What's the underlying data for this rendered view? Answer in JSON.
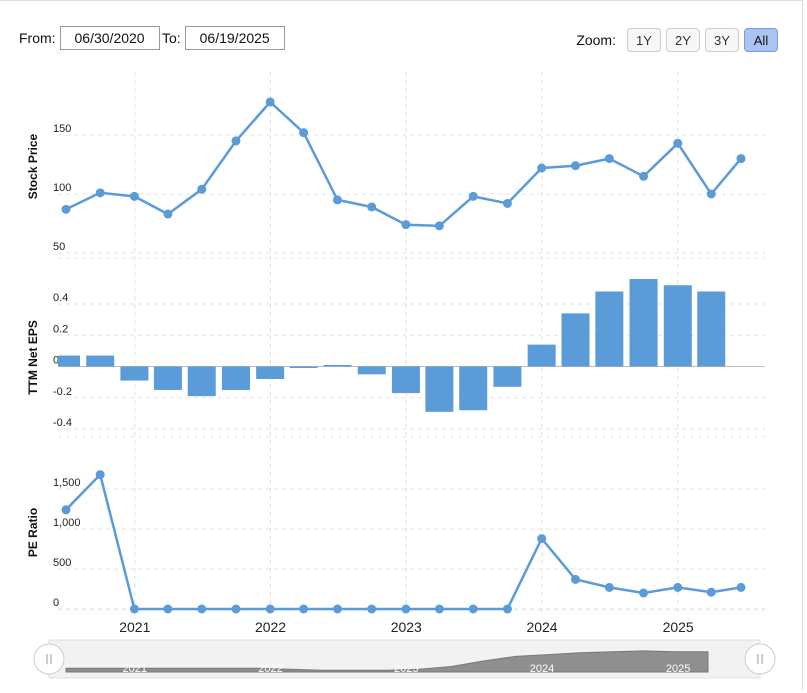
{
  "range": {
    "from_label": "From:",
    "from_value": "06/30/2020",
    "to_label": "To:",
    "to_value": "06/19/2025"
  },
  "zoom": {
    "label": "Zoom:",
    "buttons": [
      {
        "label": "1Y",
        "active": false
      },
      {
        "label": "2Y",
        "active": false
      },
      {
        "label": "3Y",
        "active": false
      },
      {
        "label": "All",
        "active": true
      }
    ]
  },
  "colors": {
    "series": "#5b9bd8",
    "active_zoom": "#a9c4f3",
    "navigator_fill": "#999999"
  },
  "chart_data": [
    {
      "type": "line",
      "ylabel": "Stock Price",
      "yticks": [
        50,
        100,
        150
      ],
      "ylim": [
        50,
        200
      ],
      "x": [
        "2020-06-30",
        "2020-09-30",
        "2020-12-31",
        "2021-03-31",
        "2021-06-30",
        "2021-09-30",
        "2021-12-31",
        "2022-03-31",
        "2022-06-30",
        "2022-09-30",
        "2022-12-31",
        "2023-03-31",
        "2023-06-30",
        "2023-09-30",
        "2023-12-31",
        "2024-03-31",
        "2024-06-30",
        "2024-09-30",
        "2024-12-31",
        "2025-03-31",
        "2025-06-19"
      ],
      "values": [
        87,
        101,
        98,
        83,
        104,
        145,
        178,
        152,
        95,
        89,
        74,
        73,
        98,
        92,
        122,
        124,
        130,
        115,
        143,
        100,
        130
      ]
    },
    {
      "type": "bar",
      "ylabel": "TTM Net EPS",
      "yticks": [
        -0.4,
        -0.2,
        0.0,
        0.2,
        0.4
      ],
      "ytick_labels": [
        "-0.4",
        "-0.2",
        "0.0",
        "0.2",
        "0.4"
      ],
      "ylim": [
        -0.45,
        0.5
      ],
      "x": [
        "2020-06-30",
        "2020-09-30",
        "2020-12-31",
        "2021-03-31",
        "2021-06-30",
        "2021-09-30",
        "2021-12-31",
        "2022-03-31",
        "2022-06-30",
        "2022-09-30",
        "2022-12-31",
        "2023-03-31",
        "2023-06-30",
        "2023-09-30",
        "2023-12-31",
        "2024-03-31",
        "2024-06-30",
        "2024-09-30",
        "2024-12-31",
        "2025-03-31"
      ],
      "values": [
        0.07,
        0.07,
        -0.09,
        -0.15,
        -0.19,
        -0.15,
        -0.08,
        0.0,
        0.01,
        -0.05,
        -0.17,
        -0.29,
        -0.28,
        -0.13,
        0.14,
        0.34,
        0.48,
        0.56,
        0.52,
        0.48
      ]
    },
    {
      "type": "line",
      "ylabel": "PE Ratio",
      "yticks": [
        0,
        500,
        1000,
        1500
      ],
      "ytick_labels": [
        "0",
        "500",
        "1,000",
        "1,500"
      ],
      "ylim": [
        0,
        1800
      ],
      "x": [
        "2020-06-30",
        "2020-09-30",
        "2020-12-31",
        "2021-03-31",
        "2021-06-30",
        "2021-09-30",
        "2021-12-31",
        "2022-03-31",
        "2022-06-30",
        "2022-09-30",
        "2022-12-31",
        "2023-03-31",
        "2023-06-30",
        "2023-09-30",
        "2023-12-31",
        "2024-03-31",
        "2024-06-30",
        "2024-09-30",
        "2024-12-31",
        "2025-03-31",
        "2025-06-19"
      ],
      "values": [
        1240,
        1680,
        0,
        0,
        0,
        0,
        0,
        0,
        0,
        0,
        0,
        0,
        0,
        0,
        880,
        370,
        270,
        200,
        270,
        210,
        270
      ]
    }
  ],
  "x_axis": {
    "ticks": [
      {
        "label": "2021",
        "date": "2021-01-01"
      },
      {
        "label": "2022",
        "date": "2022-01-01"
      },
      {
        "label": "2023",
        "date": "2023-01-01"
      },
      {
        "label": "2024",
        "date": "2024-01-01"
      },
      {
        "label": "2025",
        "date": "2025-01-01"
      }
    ]
  },
  "navigator": {
    "values": [
      4,
      4,
      4,
      4,
      4,
      4,
      4,
      3,
      2,
      2,
      2,
      3,
      6,
      12,
      17,
      19,
      21,
      22,
      23,
      22,
      22
    ]
  }
}
